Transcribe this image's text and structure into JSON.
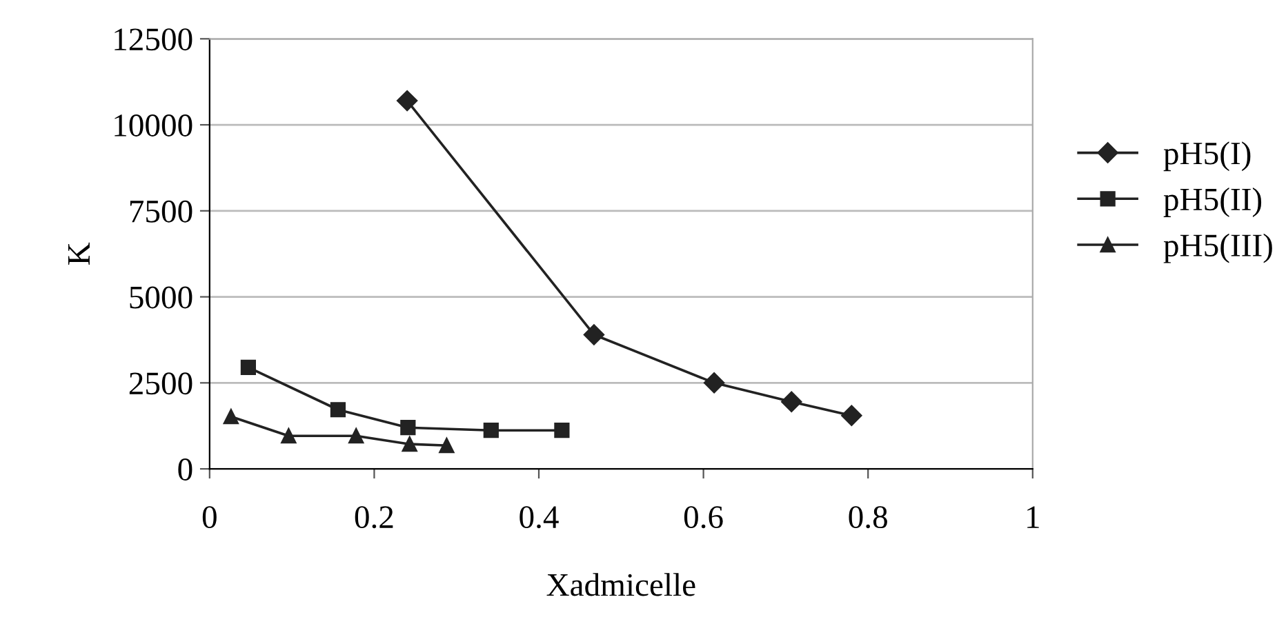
{
  "chart_data": {
    "type": "line",
    "xlabel": "Xadmicelle",
    "ylabel": "K",
    "xlim": [
      0,
      1
    ],
    "xticks": [
      0,
      0.2,
      0.4,
      0.6,
      0.8,
      1
    ],
    "ylim": [
      0,
      12500
    ],
    "yticks": [
      0,
      2500,
      5000,
      7500,
      10000,
      12500
    ],
    "grid": "y",
    "legend": "right",
    "line_style": "solid",
    "series": [
      {
        "name": "pH5(I)",
        "color": "#222222",
        "marker": "diamond",
        "x": [
          0.24,
          0.467,
          0.613,
          0.707,
          0.78
        ],
        "values": [
          10700,
          3900,
          2500,
          1950,
          1550
        ]
      },
      {
        "name": "pH5(II)",
        "color": "#222222",
        "marker": "square",
        "x": [
          0.047,
          0.156,
          0.241,
          0.342,
          0.428
        ],
        "values": [
          2950,
          1720,
          1200,
          1120,
          1120
        ]
      },
      {
        "name": "pH5(III)",
        "color": "#222222",
        "marker": "triangle",
        "x": [
          0.026,
          0.096,
          0.178,
          0.243,
          0.288
        ],
        "values": [
          1520,
          960,
          960,
          720,
          680
        ]
      }
    ]
  }
}
